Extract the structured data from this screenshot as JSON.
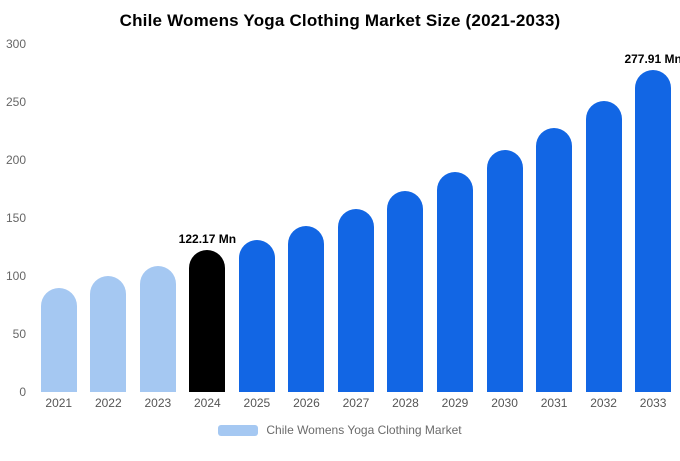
{
  "title": "Chile Womens Yoga Clothing Market Size (2021-2033)",
  "chart_data": {
    "type": "bar",
    "title": "Chile Womens Yoga Clothing Market Size (2021-2033)",
    "categories": [
      "2021",
      "2022",
      "2023",
      "2024",
      "2025",
      "2026",
      "2027",
      "2028",
      "2029",
      "2030",
      "2031",
      "2032",
      "2033"
    ],
    "values": [
      90,
      100,
      109,
      122.17,
      131,
      143,
      158,
      173,
      190,
      209,
      228,
      251,
      277.91
    ],
    "bar_colors": [
      "#a5c8f2",
      "#a5c8f2",
      "#a5c8f2",
      "#000000",
      "#1266e4",
      "#1266e4",
      "#1266e4",
      "#1266e4",
      "#1266e4",
      "#1266e4",
      "#1266e4",
      "#1266e4",
      "#1266e4"
    ],
    "annotations": [
      {
        "index": 3,
        "text": "122.17 Mn"
      },
      {
        "index": 12,
        "text": "277.91 Mn"
      }
    ],
    "xlabel": "",
    "ylabel": "",
    "ylim": [
      0,
      300
    ],
    "yticks": [
      0,
      50,
      100,
      150,
      200,
      250,
      300
    ],
    "grid": false,
    "legend_position": "bottom",
    "legend": {
      "label": "Chile Womens Yoga Clothing Market",
      "color": "#a5c8f2"
    }
  }
}
